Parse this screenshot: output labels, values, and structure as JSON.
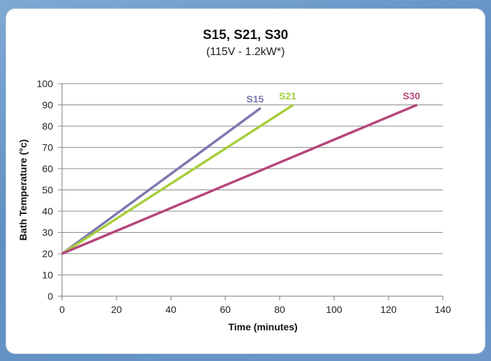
{
  "chart_data": {
    "type": "line",
    "title": "S15, S21, S30",
    "subtitle": "(115V - 1.2kW*)",
    "xlabel": "Time (minutes)",
    "ylabel": "Bath Temperature (°c)",
    "xlim": [
      0,
      140
    ],
    "ylim": [
      0,
      100
    ],
    "xticks": [
      0,
      20,
      40,
      60,
      80,
      100,
      120,
      140
    ],
    "yticks": [
      0,
      10,
      20,
      30,
      40,
      50,
      60,
      70,
      80,
      90,
      100
    ],
    "grid": "horizontal",
    "series": [
      {
        "name": "S15",
        "color": "#7b78b0",
        "x": [
          0,
          73
        ],
        "y": [
          20,
          88.5
        ]
      },
      {
        "name": "S21",
        "color": "#a6ce39",
        "x": [
          0,
          85
        ],
        "y": [
          20,
          90
        ]
      },
      {
        "name": "S30",
        "color": "#b5457a",
        "x": [
          0,
          130.5
        ],
        "y": [
          20,
          90
        ]
      }
    ]
  }
}
